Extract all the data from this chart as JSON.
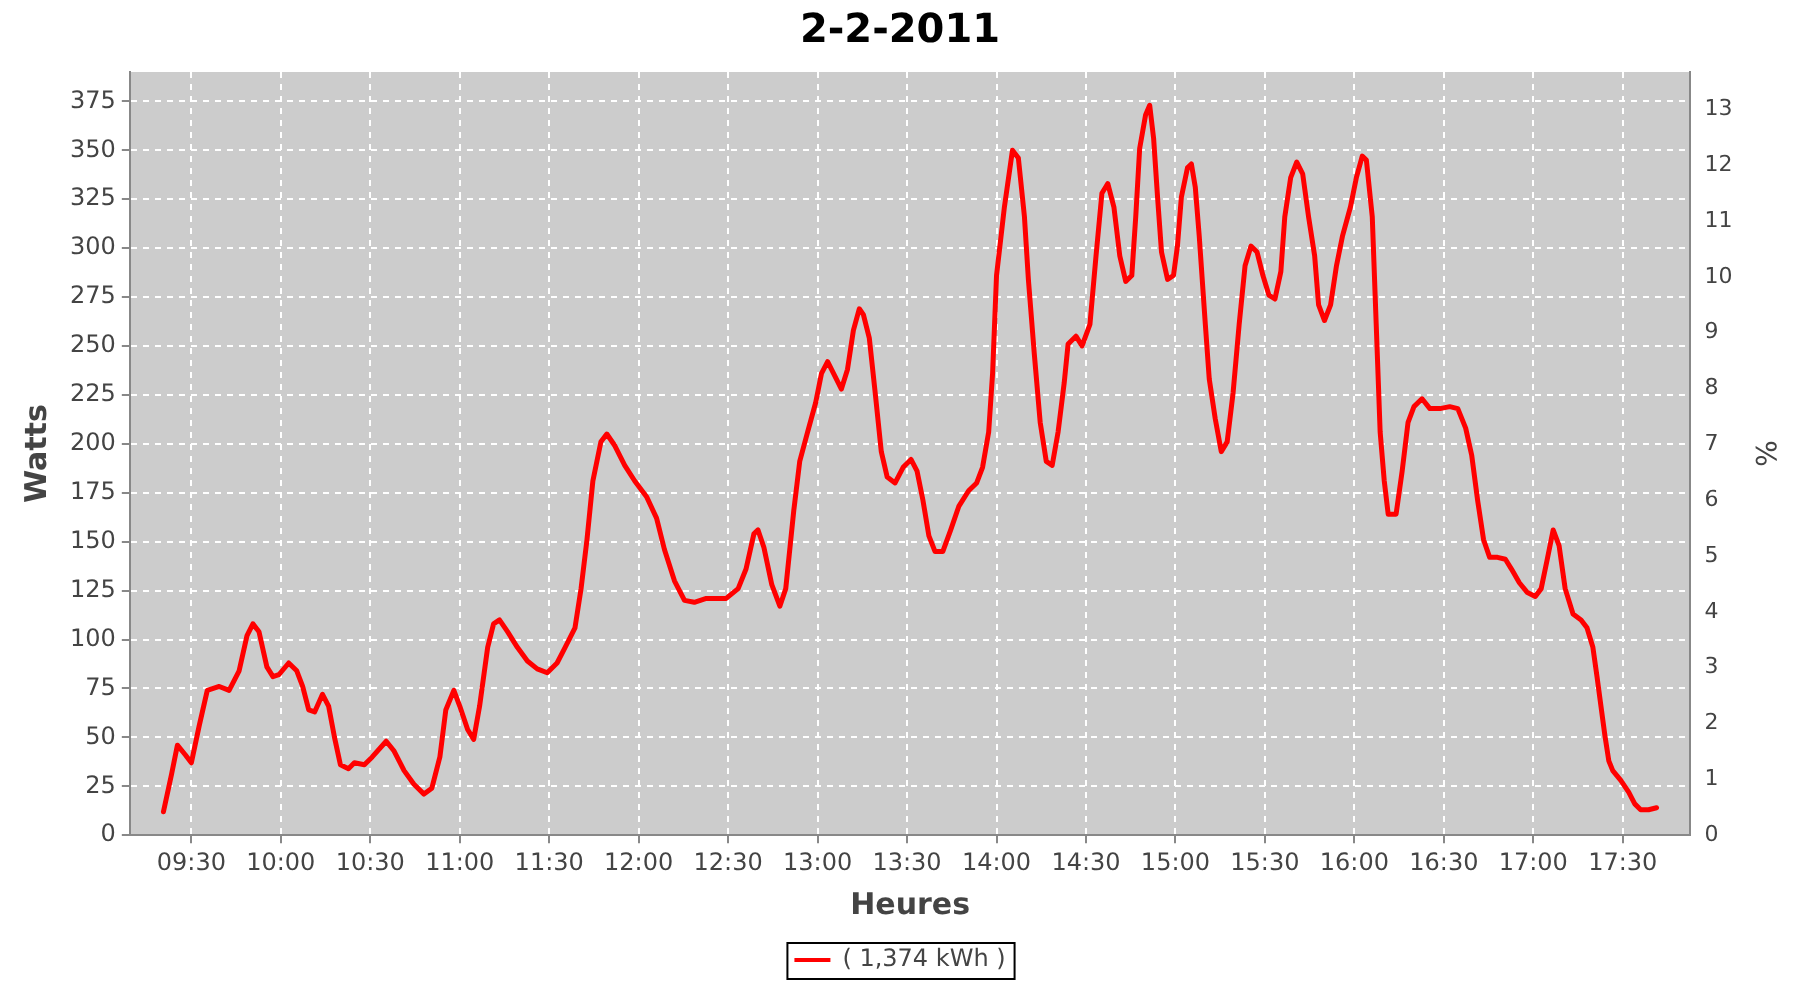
{
  "chart_data": {
    "type": "line",
    "title": "2-2-2011",
    "xlabel": "Heures",
    "ylabel": "Watts",
    "y2label": "%",
    "xlim": [
      9.156,
      17.878
    ],
    "ylim": [
      0,
      390
    ],
    "y2lim": [
      0,
      13.67
    ],
    "xticks": [
      {
        "value": 9.5,
        "label": "09:30"
      },
      {
        "value": 10,
        "label": "10:00"
      },
      {
        "value": 10.5,
        "label": "10:30"
      },
      {
        "value": 11,
        "label": "11:00"
      },
      {
        "value": 11.5,
        "label": "11:30"
      },
      {
        "value": 12,
        "label": "12:00"
      },
      {
        "value": 12.5,
        "label": "12:30"
      },
      {
        "value": 13,
        "label": "13:00"
      },
      {
        "value": 13.5,
        "label": "13:30"
      },
      {
        "value": 14,
        "label": "14:00"
      },
      {
        "value": 14.5,
        "label": "14:30"
      },
      {
        "value": 15,
        "label": "15:00"
      },
      {
        "value": 15.5,
        "label": "15:30"
      },
      {
        "value": 16,
        "label": "16:00"
      },
      {
        "value": 16.5,
        "label": "16:30"
      },
      {
        "value": 17,
        "label": "17:00"
      },
      {
        "value": 17.5,
        "label": "17:30"
      }
    ],
    "yticks": [
      0,
      25,
      50,
      75,
      100,
      125,
      150,
      175,
      200,
      225,
      250,
      275,
      300,
      325,
      350,
      375
    ],
    "y2ticks": [
      0,
      1,
      2,
      3,
      4,
      5,
      6,
      7,
      8,
      9,
      10,
      11,
      12,
      13
    ],
    "grid": true,
    "legend": "bottom",
    "marker": "none",
    "line_style": "solid",
    "series": [
      {
        "name": "( 1,374 kWh )",
        "color": "#ff0000",
        "x": [
          9.344,
          9.389,
          9.422,
          9.467,
          9.5,
          9.544,
          9.589,
          9.656,
          9.711,
          9.767,
          9.811,
          9.844,
          9.878,
          9.922,
          9.956,
          9.989,
          10.044,
          10.089,
          10.122,
          10.156,
          10.189,
          10.233,
          10.267,
          10.3,
          10.333,
          10.378,
          10.411,
          10.467,
          10.511,
          10.589,
          10.633,
          10.689,
          10.744,
          10.8,
          10.844,
          10.889,
          10.922,
          10.967,
          11.0,
          11.044,
          11.078,
          11.111,
          11.156,
          11.189,
          11.222,
          11.267,
          11.322,
          11.378,
          11.433,
          11.489,
          11.544,
          11.589,
          11.644,
          11.678,
          11.711,
          11.744,
          11.789,
          11.822,
          11.867,
          11.922,
          11.978,
          12.044,
          12.1,
          12.144,
          12.2,
          12.256,
          12.311,
          12.378,
          12.489,
          12.556,
          12.6,
          12.644,
          12.667,
          12.7,
          12.744,
          12.789,
          12.822,
          12.867,
          12.9,
          12.944,
          12.989,
          13.022,
          13.056,
          13.089,
          13.133,
          13.167,
          13.2,
          13.233,
          13.256,
          13.289,
          13.322,
          13.356,
          13.389,
          13.433,
          13.478,
          13.522,
          13.556,
          13.589,
          13.622,
          13.656,
          13.7,
          13.744,
          13.789,
          13.844,
          13.889,
          13.922,
          13.956,
          13.978,
          14.0,
          14.044,
          14.089,
          14.122,
          14.156,
          14.178,
          14.211,
          14.244,
          14.278,
          14.311,
          14.344,
          14.378,
          14.4,
          14.444,
          14.478,
          14.522,
          14.556,
          14.589,
          14.622,
          14.656,
          14.689,
          14.722,
          14.756,
          14.778,
          14.8,
          14.833,
          14.856,
          14.878,
          14.9,
          14.922,
          14.956,
          14.989,
          15.011,
          15.033,
          15.067,
          15.089,
          15.111,
          15.133,
          15.167,
          15.189,
          15.222,
          15.256,
          15.289,
          15.322,
          15.356,
          15.389,
          15.422,
          15.456,
          15.489,
          15.522,
          15.556,
          15.589,
          15.611,
          15.644,
          15.678,
          15.711,
          15.744,
          15.778,
          15.8,
          15.833,
          15.867,
          15.9,
          15.933,
          15.978,
          16.011,
          16.044,
          16.067,
          16.1,
          16.122,
          16.144,
          16.167,
          16.189,
          16.233,
          16.267,
          16.3,
          16.333,
          16.378,
          16.422,
          16.478,
          16.533,
          16.578,
          16.622,
          16.656,
          16.689,
          16.722,
          16.756,
          16.8,
          16.844,
          16.878,
          16.922,
          16.967,
          17.011,
          17.044,
          17.078,
          17.111,
          17.144,
          17.178,
          17.222,
          17.267,
          17.3,
          17.333,
          17.356,
          17.378,
          17.4,
          17.422,
          17.444,
          17.489,
          17.533,
          17.567,
          17.6,
          17.644,
          17.689
        ],
        "values": [
          12,
          31,
          46,
          41,
          37,
          56,
          74,
          76,
          74,
          84,
          102,
          108,
          104,
          86,
          81,
          82,
          88,
          84,
          76,
          64,
          63,
          72,
          66,
          50,
          36,
          34,
          37,
          36,
          40,
          48,
          43,
          33,
          26,
          21,
          24,
          40,
          64,
          74,
          66,
          54,
          49,
          66,
          96,
          108,
          110,
          104,
          96,
          89,
          85,
          83,
          88,
          96,
          106,
          126,
          151,
          181,
          201,
          205,
          199,
          189,
          181,
          173,
          162,
          146,
          130,
          120,
          119,
          121,
          121,
          126,
          136,
          154,
          156,
          147,
          128,
          117,
          126,
          166,
          191,
          206,
          221,
          236,
          242,
          236,
          228,
          238,
          258,
          269,
          266,
          254,
          226,
          196,
          183,
          180,
          188,
          192,
          186,
          171,
          153,
          145,
          145,
          156,
          168,
          176,
          180,
          188,
          206,
          236,
          286,
          321,
          350,
          346,
          316,
          284,
          246,
          211,
          191,
          189,
          206,
          231,
          251,
          255,
          250,
          261,
          296,
          328,
          333,
          321,
          296,
          283,
          286,
          316,
          351,
          368,
          373,
          356,
          326,
          298,
          284,
          286,
          301,
          326,
          341,
          343,
          331,
          306,
          261,
          233,
          213,
          196,
          201,
          226,
          261,
          291,
          301,
          298,
          286,
          276,
          274,
          288,
          316,
          336,
          344,
          338,
          316,
          296,
          271,
          263,
          271,
          291,
          306,
          321,
          336,
          347,
          345,
          316,
          261,
          206,
          181,
          164,
          164,
          186,
          211,
          219,
          223,
          218,
          218,
          219,
          218,
          208,
          194,
          171,
          151,
          142,
          142,
          141,
          136,
          129,
          124,
          122,
          126,
          141,
          156,
          148,
          126,
          113,
          110,
          106,
          96,
          81,
          66,
          51,
          38,
          33,
          28,
          22,
          16,
          13,
          13,
          14
        ]
      }
    ]
  }
}
